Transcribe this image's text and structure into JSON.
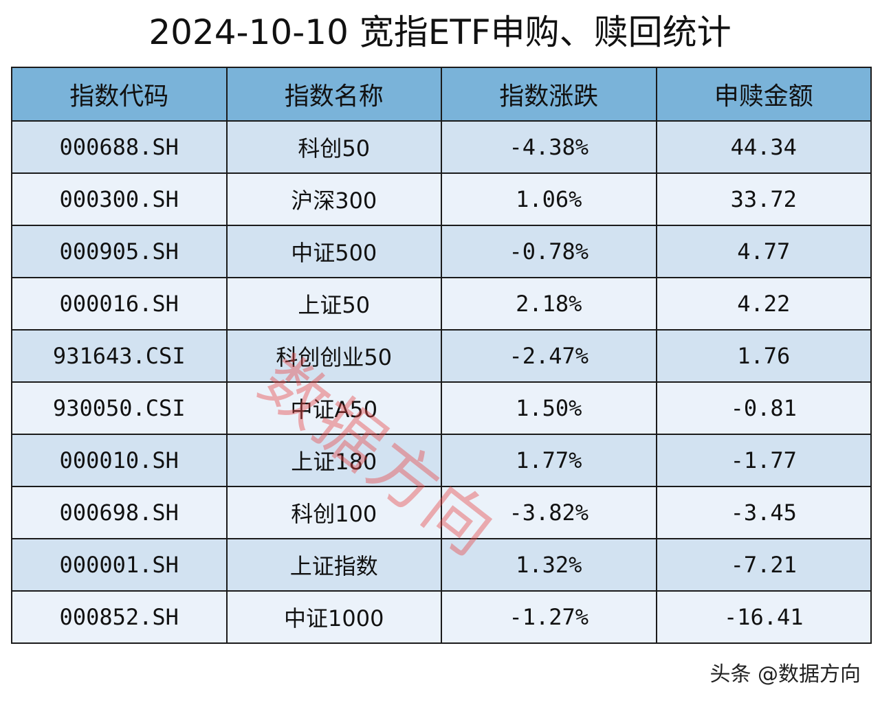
{
  "title": "2024-10-10 宽指ETF申购、赎回统计",
  "table": {
    "headers": [
      "指数代码",
      "指数名称",
      "指数涨跌",
      "申赎金额"
    ],
    "rows": [
      {
        "code": "000688.SH",
        "name": "科创50",
        "change": "-4.38%",
        "amount": "44.34"
      },
      {
        "code": "000300.SH",
        "name": "沪深300",
        "change": "1.06%",
        "amount": "33.72"
      },
      {
        "code": "000905.SH",
        "name": "中证500",
        "change": "-0.78%",
        "amount": "4.77"
      },
      {
        "code": "000016.SH",
        "name": "上证50",
        "change": "2.18%",
        "amount": "4.22"
      },
      {
        "code": "931643.CSI",
        "name": "科创创业50",
        "change": "-2.47%",
        "amount": "1.76"
      },
      {
        "code": "930050.CSI",
        "name": "中证A50",
        "change": "1.50%",
        "amount": "-0.81"
      },
      {
        "code": "000010.SH",
        "name": "上证180",
        "change": "1.77%",
        "amount": "-1.77"
      },
      {
        "code": "000698.SH",
        "name": "科创100",
        "change": "-3.82%",
        "amount": "-3.45"
      },
      {
        "code": "000001.SH",
        "name": "上证指数",
        "change": "1.32%",
        "amount": "-7.21"
      },
      {
        "code": "000852.SH",
        "name": "中证1000",
        "change": "-1.27%",
        "amount": "-16.41"
      }
    ]
  },
  "watermark": "数据方向",
  "footer": "头条 @数据方向",
  "colors": {
    "header_bg": "#7ab3d9",
    "row_odd_bg": "#d2e2f1",
    "row_even_bg": "#ebf2fa",
    "border": "#1a1a1a",
    "watermark": "#e84646"
  }
}
